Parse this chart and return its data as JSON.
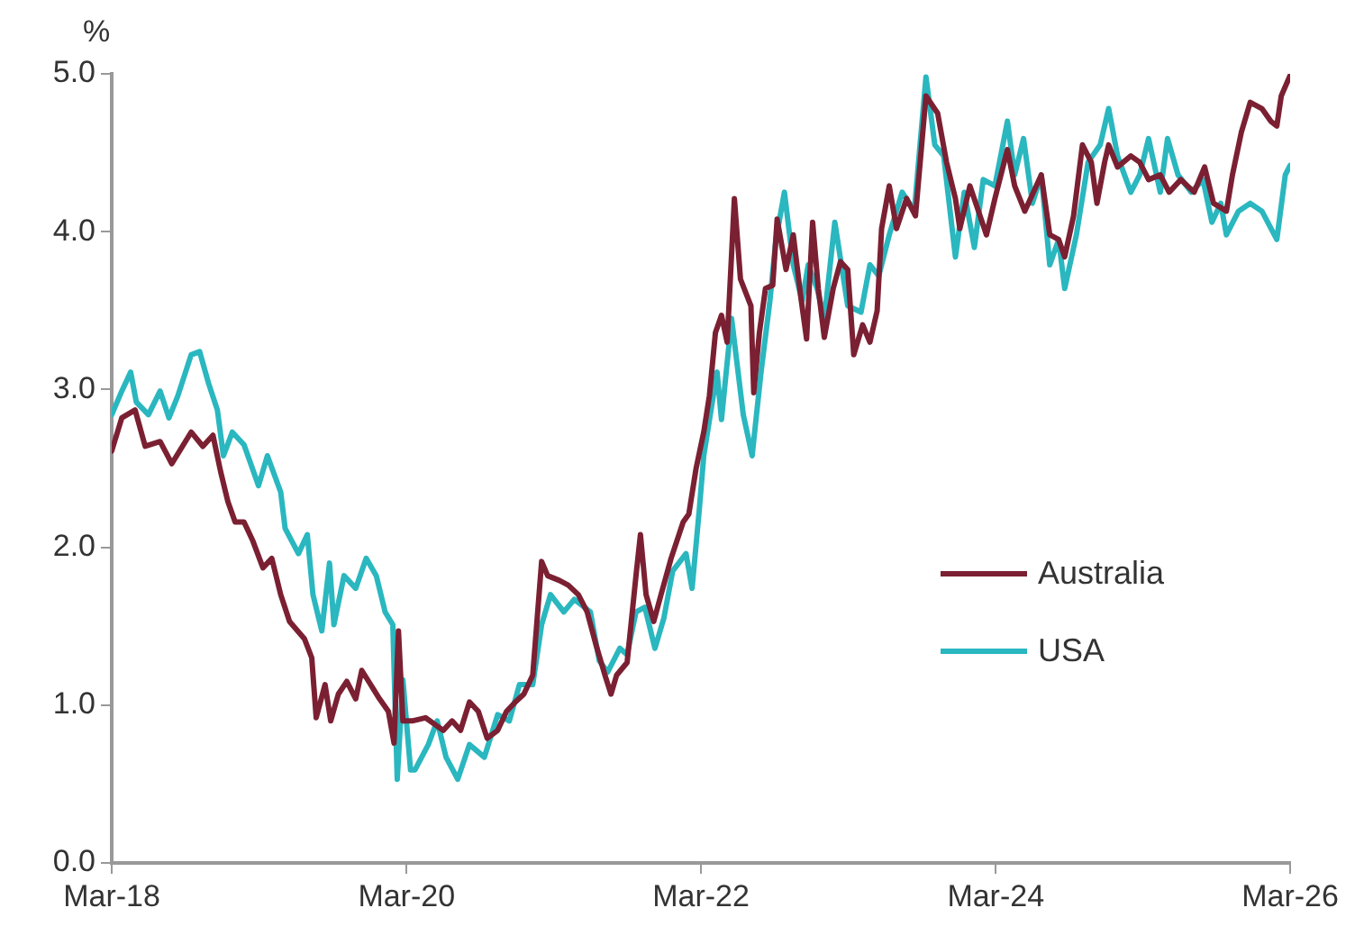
{
  "chart_data": {
    "type": "line",
    "ylabel": "%",
    "xlim": [
      "2018-03",
      "2026-03"
    ],
    "xticks": [
      {
        "value": "2018-03",
        "label": "Mar-18"
      },
      {
        "value": "2020-03",
        "label": "Mar-20"
      },
      {
        "value": "2022-03",
        "label": "Mar-22"
      },
      {
        "value": "2024-03",
        "label": "Mar-24"
      },
      {
        "value": "2026-03",
        "label": "Mar-26"
      }
    ],
    "ylim": [
      0,
      5
    ],
    "yticks": [
      {
        "value": 0,
        "label": "0.0"
      },
      {
        "value": 1,
        "label": "1.0"
      },
      {
        "value": 2,
        "label": "2.0"
      },
      {
        "value": 3,
        "label": "3.0"
      },
      {
        "value": 4,
        "label": "4.0"
      },
      {
        "value": 5,
        "label": "5.0"
      }
    ],
    "grid": false,
    "legend": "right",
    "marker": "none",
    "line_style": "solid",
    "series": [
      {
        "name": "Australia",
        "color": "#7b2032",
        "x": [
          "2018-03-01",
          "2018-03-26",
          "2018-04-28",
          "2018-05-23",
          "2018-06-29",
          "2018-07-28",
          "2018-09-14",
          "2018-10-13",
          "2018-11-07",
          "2018-11-26",
          "2018-12-14",
          "2019-01-01",
          "2019-01-23",
          "2019-02-14",
          "2019-03-11",
          "2019-04-02",
          "2019-04-24",
          "2019-05-16",
          "2019-06-22",
          "2019-07-10",
          "2019-07-21",
          "2019-08-12",
          "2019-08-26",
          "2019-09-14",
          "2019-10-05",
          "2019-10-27",
          "2019-11-11",
          "2019-12-03",
          "2019-12-25",
          "2020-01-16",
          "2020-01-30",
          "2020-02-10",
          "2020-02-21",
          "2020-03-15",
          "2020-04-17",
          "2020-05-31",
          "2020-06-22",
          "2020-07-13",
          "2020-08-04",
          "2020-08-26",
          "2020-09-17",
          "2020-10-13",
          "2020-11-04",
          "2020-11-26",
          "2020-12-17",
          "2021-01-08",
          "2021-01-30",
          "2021-02-14",
          "2021-03-15",
          "2021-04-06",
          "2021-05-01",
          "2021-05-23",
          "2021-06-14",
          "2021-07-06",
          "2021-07-21",
          "2021-08-04",
          "2021-08-30",
          "2021-09-21",
          "2021-10-02",
          "2021-10-16",
          "2021-11-04",
          "2021-11-22",
          "2021-12-17",
          "2022-01-16",
          "2022-01-30",
          "2022-02-17",
          "2022-03-08",
          "2022-03-22",
          "2022-04-06",
          "2022-04-21",
          "2022-05-05",
          "2022-05-23",
          "2022-06-07",
          "2022-07-03",
          "2022-07-10",
          "2022-07-24",
          "2022-08-08",
          "2022-08-26",
          "2022-09-06",
          "2022-09-28",
          "2022-10-16",
          "2022-11-04",
          "2022-11-18",
          "2022-12-03",
          "2022-12-17",
          "2023-01-01",
          "2023-01-23",
          "2023-02-10",
          "2023-02-28",
          "2023-03-15",
          "2023-04-06",
          "2023-04-24",
          "2023-05-12",
          "2023-05-23",
          "2023-06-11",
          "2023-06-29",
          "2023-07-24",
          "2023-08-15",
          "2023-09-10",
          "2023-10-09",
          "2023-10-31",
          "2023-11-22",
          "2023-12-03",
          "2023-12-28",
          "2024-02-07",
          "2024-02-28",
          "2024-03-30",
          "2024-04-17",
          "2024-05-12",
          "2024-06-22",
          "2024-07-13",
          "2024-08-04",
          "2024-08-19",
          "2024-09-10",
          "2024-10-02",
          "2024-10-24",
          "2024-11-07",
          "2024-11-26",
          "2024-12-06",
          "2024-12-28",
          "2025-01-30",
          "2025-02-21",
          "2025-03-15",
          "2025-04-13",
          "2025-05-05",
          "2025-06-03",
          "2025-07-06",
          "2025-08-01",
          "2025-08-23",
          "2025-09-24",
          "2025-10-09",
          "2025-10-31",
          "2025-11-22",
          "2025-12-21",
          "2026-01-12",
          "2026-01-27",
          "2026-02-07",
          "2026-03-01"
        ],
        "values": [
          2.61,
          2.82,
          2.87,
          2.64,
          2.67,
          2.53,
          2.73,
          2.64,
          2.71,
          2.48,
          2.29,
          2.16,
          2.16,
          2.04,
          1.87,
          1.93,
          1.7,
          1.53,
          1.42,
          1.3,
          0.92,
          1.13,
          0.9,
          1.07,
          1.15,
          1.04,
          1.22,
          1.13,
          1.04,
          0.96,
          0.76,
          1.47,
          0.9,
          0.9,
          0.92,
          0.84,
          0.9,
          0.84,
          1.02,
          0.96,
          0.79,
          0.84,
          0.96,
          1.02,
          1.07,
          1.19,
          1.91,
          1.82,
          1.79,
          1.76,
          1.7,
          1.59,
          1.38,
          1.19,
          1.07,
          1.19,
          1.27,
          1.82,
          2.08,
          1.7,
          1.53,
          1.7,
          1.93,
          2.16,
          2.21,
          2.5,
          2.73,
          2.96,
          3.36,
          3.47,
          3.3,
          4.21,
          3.7,
          3.53,
          2.98,
          3.36,
          3.64,
          3.66,
          4.08,
          3.76,
          3.98,
          3.58,
          3.32,
          4.06,
          3.64,
          3.33,
          3.64,
          3.81,
          3.76,
          3.22,
          3.41,
          3.3,
          3.5,
          4.02,
          4.29,
          4.02,
          4.21,
          4.1,
          4.86,
          4.75,
          4.44,
          4.21,
          4.02,
          4.29,
          3.98,
          4.21,
          4.52,
          4.29,
          4.13,
          4.36,
          3.98,
          3.95,
          3.84,
          4.1,
          4.55,
          4.44,
          4.18,
          4.44,
          4.55,
          4.41,
          4.48,
          4.44,
          4.33,
          4.36,
          4.25,
          4.33,
          4.25,
          4.41,
          4.18,
          4.13,
          4.36,
          4.63,
          4.82,
          4.78,
          4.7,
          4.67,
          4.86,
          4.99
        ]
      },
      {
        "name": "USA",
        "color": "#2ab7bf",
        "x": [
          "2018-03-01",
          "2018-03-26",
          "2018-04-17",
          "2018-05-01",
          "2018-05-31",
          "2018-06-29",
          "2018-07-21",
          "2018-08-12",
          "2018-09-14",
          "2018-10-05",
          "2018-10-27",
          "2018-11-18",
          "2018-12-03",
          "2018-12-25",
          "2019-01-23",
          "2019-02-28",
          "2019-03-22",
          "2019-04-24",
          "2019-05-05",
          "2019-06-07",
          "2019-06-29",
          "2019-07-13",
          "2019-08-04",
          "2019-08-23",
          "2019-09-03",
          "2019-09-28",
          "2019-10-27",
          "2019-11-22",
          "2019-12-17",
          "2020-01-08",
          "2020-01-27",
          "2020-02-07",
          "2020-02-21",
          "2020-03-11",
          "2020-03-22",
          "2020-04-24",
          "2020-05-16",
          "2020-06-07",
          "2020-07-06",
          "2020-08-04",
          "2020-09-10",
          "2020-10-13",
          "2020-11-11",
          "2020-12-06",
          "2021-01-08",
          "2021-01-30",
          "2021-02-21",
          "2021-03-26",
          "2021-04-21",
          "2021-05-31",
          "2021-06-22",
          "2021-07-13",
          "2021-08-12",
          "2021-08-30",
          "2021-09-21",
          "2021-10-13",
          "2021-11-07",
          "2021-11-29",
          "2021-12-21",
          "2022-01-23",
          "2022-02-07",
          "2022-02-25",
          "2022-03-08",
          "2022-04-10",
          "2022-04-21",
          "2022-05-16",
          "2022-06-14",
          "2022-07-06",
          "2022-07-28",
          "2022-08-19",
          "2022-09-03",
          "2022-09-24",
          "2022-10-16",
          "2022-11-07",
          "2022-11-22",
          "2022-12-14",
          "2023-01-01",
          "2023-01-27",
          "2023-02-28",
          "2023-04-02",
          "2023-04-24",
          "2023-05-16",
          "2023-06-11",
          "2023-07-13",
          "2023-08-12",
          "2023-09-10",
          "2023-10-02",
          "2023-10-24",
          "2023-11-22",
          "2023-12-14",
          "2024-01-08",
          "2024-01-30",
          "2024-02-28",
          "2024-03-30",
          "2024-04-17",
          "2024-05-09",
          "2024-05-31",
          "2024-06-22",
          "2024-07-13",
          "2024-08-04",
          "2024-08-19",
          "2024-09-17",
          "2024-10-16",
          "2024-11-15",
          "2024-12-06",
          "2024-12-28",
          "2025-01-30",
          "2025-02-21",
          "2025-03-15",
          "2025-04-13",
          "2025-05-01",
          "2025-05-27",
          "2025-06-29",
          "2025-07-28",
          "2025-08-19",
          "2025-09-10",
          "2025-09-24",
          "2025-10-24",
          "2025-11-22",
          "2025-12-21",
          "2026-01-27",
          "2026-02-17",
          "2026-03-01"
        ],
        "values": [
          2.84,
          2.99,
          3.11,
          2.92,
          2.84,
          2.99,
          2.82,
          2.96,
          3.22,
          3.24,
          3.04,
          2.87,
          2.58,
          2.73,
          2.65,
          2.39,
          2.58,
          2.35,
          2.12,
          1.96,
          2.08,
          1.7,
          1.47,
          1.9,
          1.51,
          1.82,
          1.74,
          1.93,
          1.82,
          1.59,
          1.51,
          0.53,
          1.16,
          0.59,
          0.59,
          0.75,
          0.9,
          0.67,
          0.53,
          0.75,
          0.67,
          0.94,
          0.9,
          1.13,
          1.13,
          1.51,
          1.7,
          1.59,
          1.67,
          1.59,
          1.28,
          1.21,
          1.36,
          1.32,
          1.59,
          1.62,
          1.36,
          1.55,
          1.85,
          1.96,
          1.74,
          2.24,
          2.58,
          3.11,
          2.81,
          3.45,
          2.84,
          2.58,
          3.11,
          3.56,
          3.95,
          4.25,
          3.79,
          3.56,
          3.79,
          3.64,
          3.45,
          4.06,
          3.53,
          3.49,
          3.79,
          3.72,
          3.98,
          4.25,
          4.13,
          4.98,
          4.55,
          4.48,
          3.84,
          4.25,
          3.9,
          4.33,
          4.29,
          4.7,
          4.36,
          4.59,
          4.18,
          4.36,
          3.79,
          3.95,
          3.64,
          3.98,
          4.44,
          4.55,
          4.78,
          4.48,
          4.25,
          4.36,
          4.59,
          4.25,
          4.59,
          4.36,
          4.25,
          4.33,
          4.06,
          4.18,
          3.98,
          4.13,
          4.18,
          4.13,
          3.95,
          4.36,
          4.42
        ]
      }
    ]
  }
}
